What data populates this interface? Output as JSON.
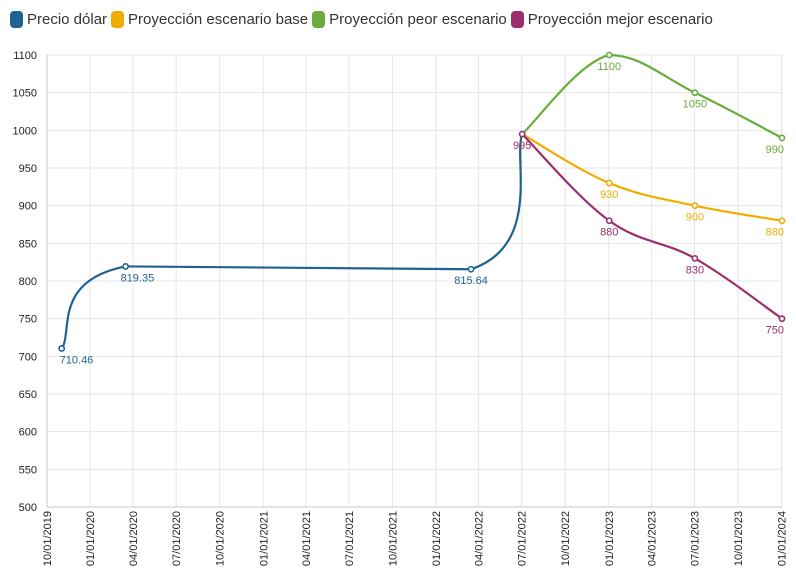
{
  "chart_data": {
    "type": "line",
    "title": "",
    "xlabel": "",
    "ylabel": "",
    "ylim": [
      500,
      1100
    ],
    "y_ticks": [
      500,
      550,
      600,
      650,
      700,
      750,
      800,
      850,
      900,
      950,
      1000,
      1050,
      1100
    ],
    "x_range": [
      "2019-10-01",
      "2024-01-01"
    ],
    "x_ticks": [
      {
        "date": "2019-10-01",
        "label": "10/01/2019"
      },
      {
        "date": "2019-12-31",
        "label": "01/01/2020"
      },
      {
        "date": "2020-03-31",
        "label": "04/01/2020"
      },
      {
        "date": "2020-06-30",
        "label": "07/01/2020"
      },
      {
        "date": "2020-09-30",
        "label": "10/01/2020"
      },
      {
        "date": "2020-12-31",
        "label": "01/01/2021"
      },
      {
        "date": "2021-03-31",
        "label": "04/01/2021"
      },
      {
        "date": "2021-06-30",
        "label": "07/01/2021"
      },
      {
        "date": "2021-09-30",
        "label": "10/01/2021"
      },
      {
        "date": "2021-12-31",
        "label": "01/01/2022"
      },
      {
        "date": "2022-03-31",
        "label": "04/01/2022"
      },
      {
        "date": "2022-06-30",
        "label": "07/01/2022"
      },
      {
        "date": "2022-09-30",
        "label": "10/01/2022"
      },
      {
        "date": "2022-12-31",
        "label": "01/01/2023"
      },
      {
        "date": "2023-03-31",
        "label": "04/01/2023"
      },
      {
        "date": "2023-06-30",
        "label": "07/01/2023"
      },
      {
        "date": "2023-09-30",
        "label": "10/01/2023"
      },
      {
        "date": "2023-12-31",
        "label": "01/01/2024"
      }
    ],
    "grid": true,
    "legend_position": "top-left",
    "series": [
      {
        "name": "Precio dólar",
        "color": "#1f6391",
        "points": [
          {
            "x": "2019-11-01",
            "y": 710.46,
            "label": "710.46"
          },
          {
            "x": "2020-03-15",
            "y": 819.35,
            "label": "819.35"
          },
          {
            "x": "2022-03-15",
            "y": 815.64,
            "label": "815.64"
          },
          {
            "x": "2022-07-01",
            "y": 995,
            "label": ""
          }
        ]
      },
      {
        "name": "Proyección escenario base",
        "color": "#f0ad00",
        "points": [
          {
            "x": "2022-07-01",
            "y": 995,
            "label": ""
          },
          {
            "x": "2023-01-01",
            "y": 930,
            "label": "930"
          },
          {
            "x": "2023-07-01",
            "y": 900,
            "label": "900"
          },
          {
            "x": "2024-01-01",
            "y": 880,
            "label": "880"
          }
        ]
      },
      {
        "name": "Proyección peor escenario",
        "color": "#6aac3d",
        "points": [
          {
            "x": "2022-07-01",
            "y": 995,
            "label": ""
          },
          {
            "x": "2023-01-01",
            "y": 1100,
            "label": "1100"
          },
          {
            "x": "2023-07-01",
            "y": 1050,
            "label": "1050"
          },
          {
            "x": "2024-01-01",
            "y": 990,
            "label": "990"
          }
        ]
      },
      {
        "name": "Proyección mejor escenario",
        "color": "#9b2f6d",
        "points": [
          {
            "x": "2022-07-01",
            "y": 995,
            "label": "995"
          },
          {
            "x": "2023-01-01",
            "y": 880,
            "label": "880"
          },
          {
            "x": "2023-07-01",
            "y": 830,
            "label": "830"
          },
          {
            "x": "2024-01-01",
            "y": 750,
            "label": "750"
          }
        ]
      }
    ]
  }
}
